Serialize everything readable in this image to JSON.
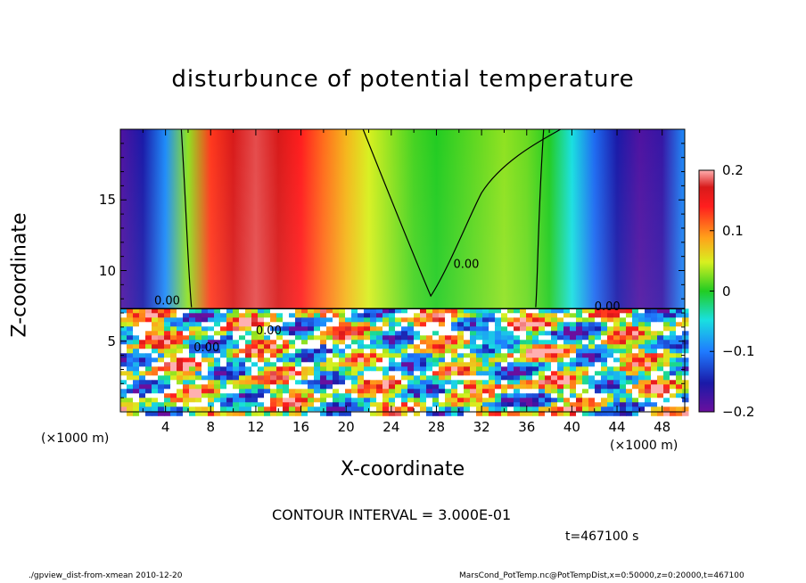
{
  "title": "disturbunce of potential temperature",
  "chart_data": {
    "type": "heatmap",
    "title": "disturbunce of potential temperature",
    "xlabel": "X-coordinate",
    "ylabel": "Z-coordinate",
    "x_unit": "(×1000 m)",
    "xlim": [
      0,
      50
    ],
    "ylim": [
      0,
      20
    ],
    "x_ticks": [
      4,
      8,
      12,
      16,
      20,
      24,
      28,
      32,
      36,
      40,
      44,
      48
    ],
    "y_ticks": [
      5,
      10,
      15
    ],
    "colorbar": {
      "range": [
        -0.2,
        0.2
      ],
      "tick_labels": [
        "0.2",
        "0.1",
        "0",
        "−0.1",
        "−0.2"
      ],
      "tick_values": [
        0.2,
        0.1,
        0,
        -0.1,
        -0.2
      ]
    },
    "contour_label": "0.00",
    "upper_layer_profile": {
      "z_range": [
        7.3,
        20
      ],
      "x": [
        0,
        2,
        4,
        6,
        8,
        10,
        12,
        14,
        16,
        18,
        20,
        22,
        24,
        26,
        28,
        30,
        32,
        34,
        36,
        38,
        40,
        42,
        44,
        46,
        48,
        50
      ],
      "value": [
        -0.19,
        -0.17,
        -0.1,
        0.03,
        0.13,
        0.17,
        0.18,
        0.17,
        0.14,
        0.11,
        0.08,
        0.05,
        0.03,
        0.01,
        0.0,
        0.01,
        0.02,
        0.03,
        0.02,
        0.0,
        -0.05,
        -0.12,
        -0.17,
        -0.19,
        -0.18,
        -0.1
      ]
    }
  },
  "contour_interval": "CONTOUR INTERVAL = 3.000E-01",
  "time_label": "t=467100 s",
  "footer_left": "./gpview_dist-from-xmean  2010-12-20",
  "footer_right": "MarsCond_PotTemp.nc@PotTempDist,x=0:50000,z=0:20000,t=467100"
}
